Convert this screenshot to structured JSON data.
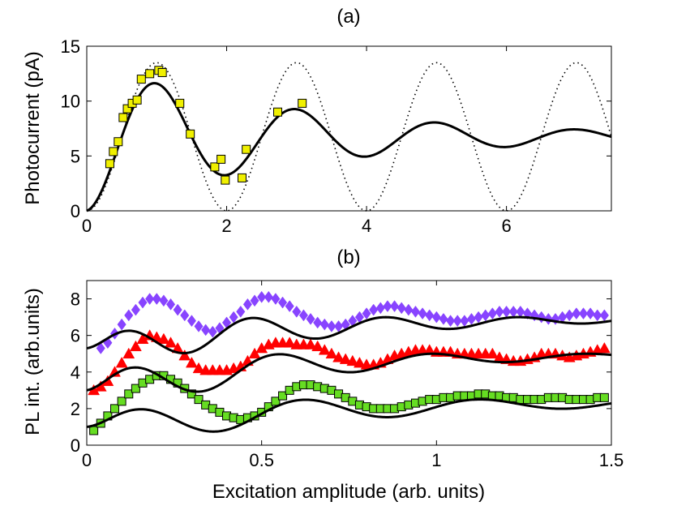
{
  "chart_data": [
    {
      "panel_label": "(a)",
      "type": "line",
      "xlabel": "",
      "ylabel": "Photocurrent (pA)",
      "xlim": [
        0,
        7.5
      ],
      "ylim": [
        0,
        15
      ],
      "xticks": [
        0,
        2,
        4,
        6
      ],
      "xtick_labels": [
        "0",
        "2",
        "4",
        "6"
      ],
      "yticks": [
        0,
        5,
        10,
        15
      ],
      "ytick_labels": [
        "0",
        "5",
        "10",
        "15"
      ],
      "grid": false,
      "series": [
        {
          "name": "dotted-oscillation",
          "style": "dotted",
          "color": "#000000",
          "model": {
            "kind": "undamped",
            "amplitude": 6.75,
            "offset": 6.75,
            "period": 2.0
          }
        },
        {
          "name": "damped-fit",
          "style": "solid",
          "color": "#000000",
          "model": {
            "kind": "damped",
            "offset": 6.75,
            "amplitude": 6.75,
            "period": 2.0,
            "decay": 0.33
          }
        },
        {
          "name": "measured-photocurrent",
          "style": "marker",
          "marker": "square",
          "color": "#f0f000",
          "x": [
            0.33,
            0.38,
            0.45,
            0.52,
            0.58,
            0.65,
            0.72,
            0.78,
            0.9,
            1.03,
            1.08,
            1.33,
            1.48,
            1.83,
            1.92,
            1.98,
            2.22,
            2.28,
            2.73,
            3.08
          ],
          "y": [
            4.3,
            5.4,
            6.3,
            8.5,
            9.3,
            9.8,
            10.1,
            12.0,
            12.5,
            12.8,
            12.6,
            9.8,
            7.0,
            4.0,
            4.7,
            2.8,
            3.0,
            5.6,
            9.0,
            9.8
          ]
        }
      ]
    },
    {
      "panel_label": "(b)",
      "type": "scatter",
      "xlabel": "Excitation amplitude (arb. units)",
      "ylabel": "PL  int. (arb.units)",
      "xlim": [
        0,
        1.5
      ],
      "ylim": [
        0,
        9
      ],
      "xticks": [
        0,
        0.5,
        1,
        1.5
      ],
      "xtick_labels": [
        "0",
        "0.5",
        "1",
        "1.5"
      ],
      "yticks": [
        0,
        2,
        4,
        6,
        8
      ],
      "ytick_labels": [
        "0",
        "2",
        "4",
        "6",
        "8"
      ],
      "grid": false,
      "series": [
        {
          "name": "diamond-series",
          "marker": "diamond",
          "color": "#8844ff",
          "x": [
            0.04,
            0.06,
            0.08,
            0.1,
            0.12,
            0.14,
            0.16,
            0.18,
            0.2,
            0.22,
            0.24,
            0.26,
            0.28,
            0.3,
            0.32,
            0.34,
            0.36,
            0.38,
            0.4,
            0.42,
            0.44,
            0.46,
            0.48,
            0.5,
            0.52,
            0.54,
            0.56,
            0.58,
            0.6,
            0.62,
            0.64,
            0.66,
            0.68,
            0.7,
            0.72,
            0.74,
            0.76,
            0.78,
            0.8,
            0.82,
            0.84,
            0.86,
            0.88,
            0.9,
            0.92,
            0.94,
            0.96,
            0.98,
            1.0,
            1.02,
            1.04,
            1.06,
            1.08,
            1.1,
            1.12,
            1.14,
            1.16,
            1.18,
            1.2,
            1.22,
            1.24,
            1.26,
            1.28,
            1.3,
            1.32,
            1.34,
            1.36,
            1.38,
            1.4,
            1.42,
            1.44,
            1.46,
            1.48
          ],
          "y": [
            5.3,
            5.6,
            6.1,
            6.6,
            7.1,
            7.4,
            7.8,
            8.0,
            8.0,
            7.9,
            7.7,
            7.4,
            7.1,
            6.8,
            6.5,
            6.3,
            6.2,
            6.4,
            6.7,
            7.0,
            7.3,
            7.7,
            7.9,
            8.1,
            8.1,
            8.0,
            7.8,
            7.6,
            7.3,
            7.1,
            6.9,
            6.7,
            6.6,
            6.5,
            6.5,
            6.6,
            6.8,
            7.0,
            7.2,
            7.4,
            7.5,
            7.6,
            7.6,
            7.5,
            7.4,
            7.3,
            7.2,
            7.1,
            7.0,
            6.9,
            6.8,
            6.8,
            6.8,
            6.9,
            7.0,
            7.1,
            7.2,
            7.3,
            7.3,
            7.3,
            7.3,
            7.2,
            7.1,
            7.0,
            6.9,
            6.9,
            7.0,
            7.1,
            7.2,
            7.2,
            7.2,
            7.1,
            7.1
          ]
        },
        {
          "name": "triangle-series",
          "marker": "triangle",
          "color": "#ff0000",
          "x": [
            0.02,
            0.04,
            0.06,
            0.08,
            0.1,
            0.12,
            0.14,
            0.16,
            0.18,
            0.2,
            0.22,
            0.24,
            0.26,
            0.28,
            0.3,
            0.32,
            0.34,
            0.36,
            0.38,
            0.4,
            0.42,
            0.44,
            0.46,
            0.48,
            0.5,
            0.52,
            0.54,
            0.56,
            0.58,
            0.6,
            0.62,
            0.64,
            0.66,
            0.68,
            0.7,
            0.72,
            0.74,
            0.76,
            0.78,
            0.8,
            0.82,
            0.84,
            0.86,
            0.88,
            0.9,
            0.92,
            0.94,
            0.96,
            0.98,
            1.0,
            1.02,
            1.04,
            1.06,
            1.08,
            1.1,
            1.12,
            1.14,
            1.16,
            1.18,
            1.2,
            1.22,
            1.24,
            1.26,
            1.28,
            1.3,
            1.32,
            1.34,
            1.36,
            1.38,
            1.4,
            1.42,
            1.44,
            1.46,
            1.48
          ],
          "y": [
            3.0,
            3.2,
            3.5,
            4.0,
            4.5,
            5.0,
            5.4,
            5.8,
            6.0,
            5.9,
            5.8,
            5.6,
            5.3,
            4.9,
            4.5,
            4.2,
            4.1,
            4.1,
            4.1,
            4.1,
            4.2,
            4.3,
            4.6,
            5.0,
            5.3,
            5.5,
            5.6,
            5.6,
            5.6,
            5.5,
            5.5,
            5.5,
            5.4,
            5.2,
            5.0,
            4.8,
            4.7,
            4.6,
            4.5,
            4.4,
            4.4,
            4.5,
            4.7,
            4.9,
            5.0,
            5.1,
            5.2,
            5.2,
            5.2,
            5.1,
            5.1,
            5.1,
            5.0,
            5.0,
            5.0,
            5.0,
            5.0,
            5.0,
            4.8,
            4.7,
            4.6,
            4.6,
            4.7,
            4.8,
            5.0,
            5.0,
            5.0,
            4.9,
            4.8,
            4.9,
            5.0,
            5.1,
            5.2,
            5.3
          ]
        },
        {
          "name": "square-series",
          "marker": "square",
          "color": "#66dd22",
          "x": [
            0.02,
            0.04,
            0.06,
            0.08,
            0.1,
            0.12,
            0.14,
            0.16,
            0.18,
            0.2,
            0.22,
            0.24,
            0.26,
            0.28,
            0.3,
            0.32,
            0.34,
            0.36,
            0.38,
            0.4,
            0.42,
            0.44,
            0.46,
            0.48,
            0.5,
            0.52,
            0.54,
            0.56,
            0.58,
            0.6,
            0.62,
            0.64,
            0.66,
            0.68,
            0.7,
            0.72,
            0.74,
            0.76,
            0.78,
            0.8,
            0.82,
            0.84,
            0.86,
            0.88,
            0.9,
            0.92,
            0.94,
            0.96,
            0.98,
            1.0,
            1.02,
            1.04,
            1.06,
            1.08,
            1.1,
            1.12,
            1.14,
            1.16,
            1.18,
            1.2,
            1.22,
            1.24,
            1.26,
            1.28,
            1.3,
            1.32,
            1.34,
            1.36,
            1.38,
            1.4,
            1.42,
            1.44,
            1.46,
            1.48
          ],
          "y": [
            0.8,
            1.2,
            1.6,
            2.0,
            2.4,
            2.8,
            3.1,
            3.4,
            3.6,
            3.8,
            3.8,
            3.6,
            3.4,
            3.1,
            2.8,
            2.5,
            2.2,
            2.0,
            1.8,
            1.6,
            1.5,
            1.4,
            1.5,
            1.6,
            1.8,
            2.1,
            2.4,
            2.7,
            3.0,
            3.2,
            3.3,
            3.3,
            3.2,
            3.1,
            3.0,
            2.8,
            2.6,
            2.4,
            2.2,
            2.1,
            2.0,
            2.0,
            2.0,
            2.0,
            2.1,
            2.2,
            2.3,
            2.4,
            2.5,
            2.5,
            2.6,
            2.6,
            2.7,
            2.7,
            2.7,
            2.8,
            2.8,
            2.7,
            2.7,
            2.6,
            2.6,
            2.5,
            2.5,
            2.5,
            2.5,
            2.6,
            2.6,
            2.6,
            2.5,
            2.5,
            2.5,
            2.5,
            2.6,
            2.6
          ]
        },
        {
          "name": "diamond-fit",
          "style": "solid",
          "color": "#000000",
          "model": {
            "kind": "damped",
            "start": 5.3,
            "offset": 7.0,
            "amplitude": 1.7,
            "period": 0.38,
            "decay": 1.6
          }
        },
        {
          "name": "triangle-fit",
          "style": "solid",
          "color": "#000000",
          "model": {
            "kind": "damped",
            "start": 3.0,
            "offset": 5.0,
            "amplitude": 2.0,
            "period": 0.44,
            "decay": 1.8
          }
        },
        {
          "name": "square-fit",
          "style": "solid",
          "color": "#000000",
          "model": {
            "kind": "damped",
            "start": 1.0,
            "offset": 2.5,
            "amplitude": 1.5,
            "period": 0.5,
            "decay": 1.3
          }
        }
      ]
    }
  ]
}
